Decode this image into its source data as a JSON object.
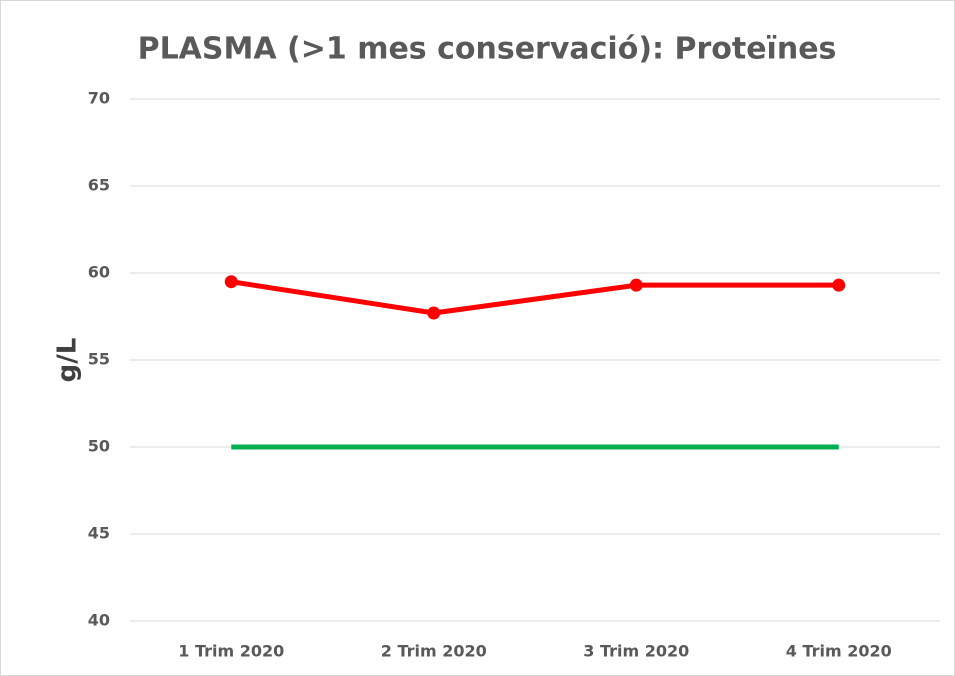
{
  "chart_data": {
    "type": "line",
    "title": "PLASMA (>1 mes conservació): Proteïnes",
    "ylabel": "g/L",
    "categories": [
      "1 Trim 2020",
      "2 Trim 2020",
      "3 Trim 2020",
      "4 Trim 2020"
    ],
    "series": [
      {
        "color": "#ff0000",
        "markers": true,
        "values": [
          59.5,
          57.7,
          59.3,
          59.3
        ]
      },
      {
        "color": "#00b050",
        "markers": false,
        "values": [
          50,
          50,
          50,
          50
        ]
      }
    ],
    "ylim": [
      40,
      70
    ],
    "yticks": [
      40,
      45,
      50,
      55,
      60,
      65,
      70
    ],
    "grid": true
  }
}
